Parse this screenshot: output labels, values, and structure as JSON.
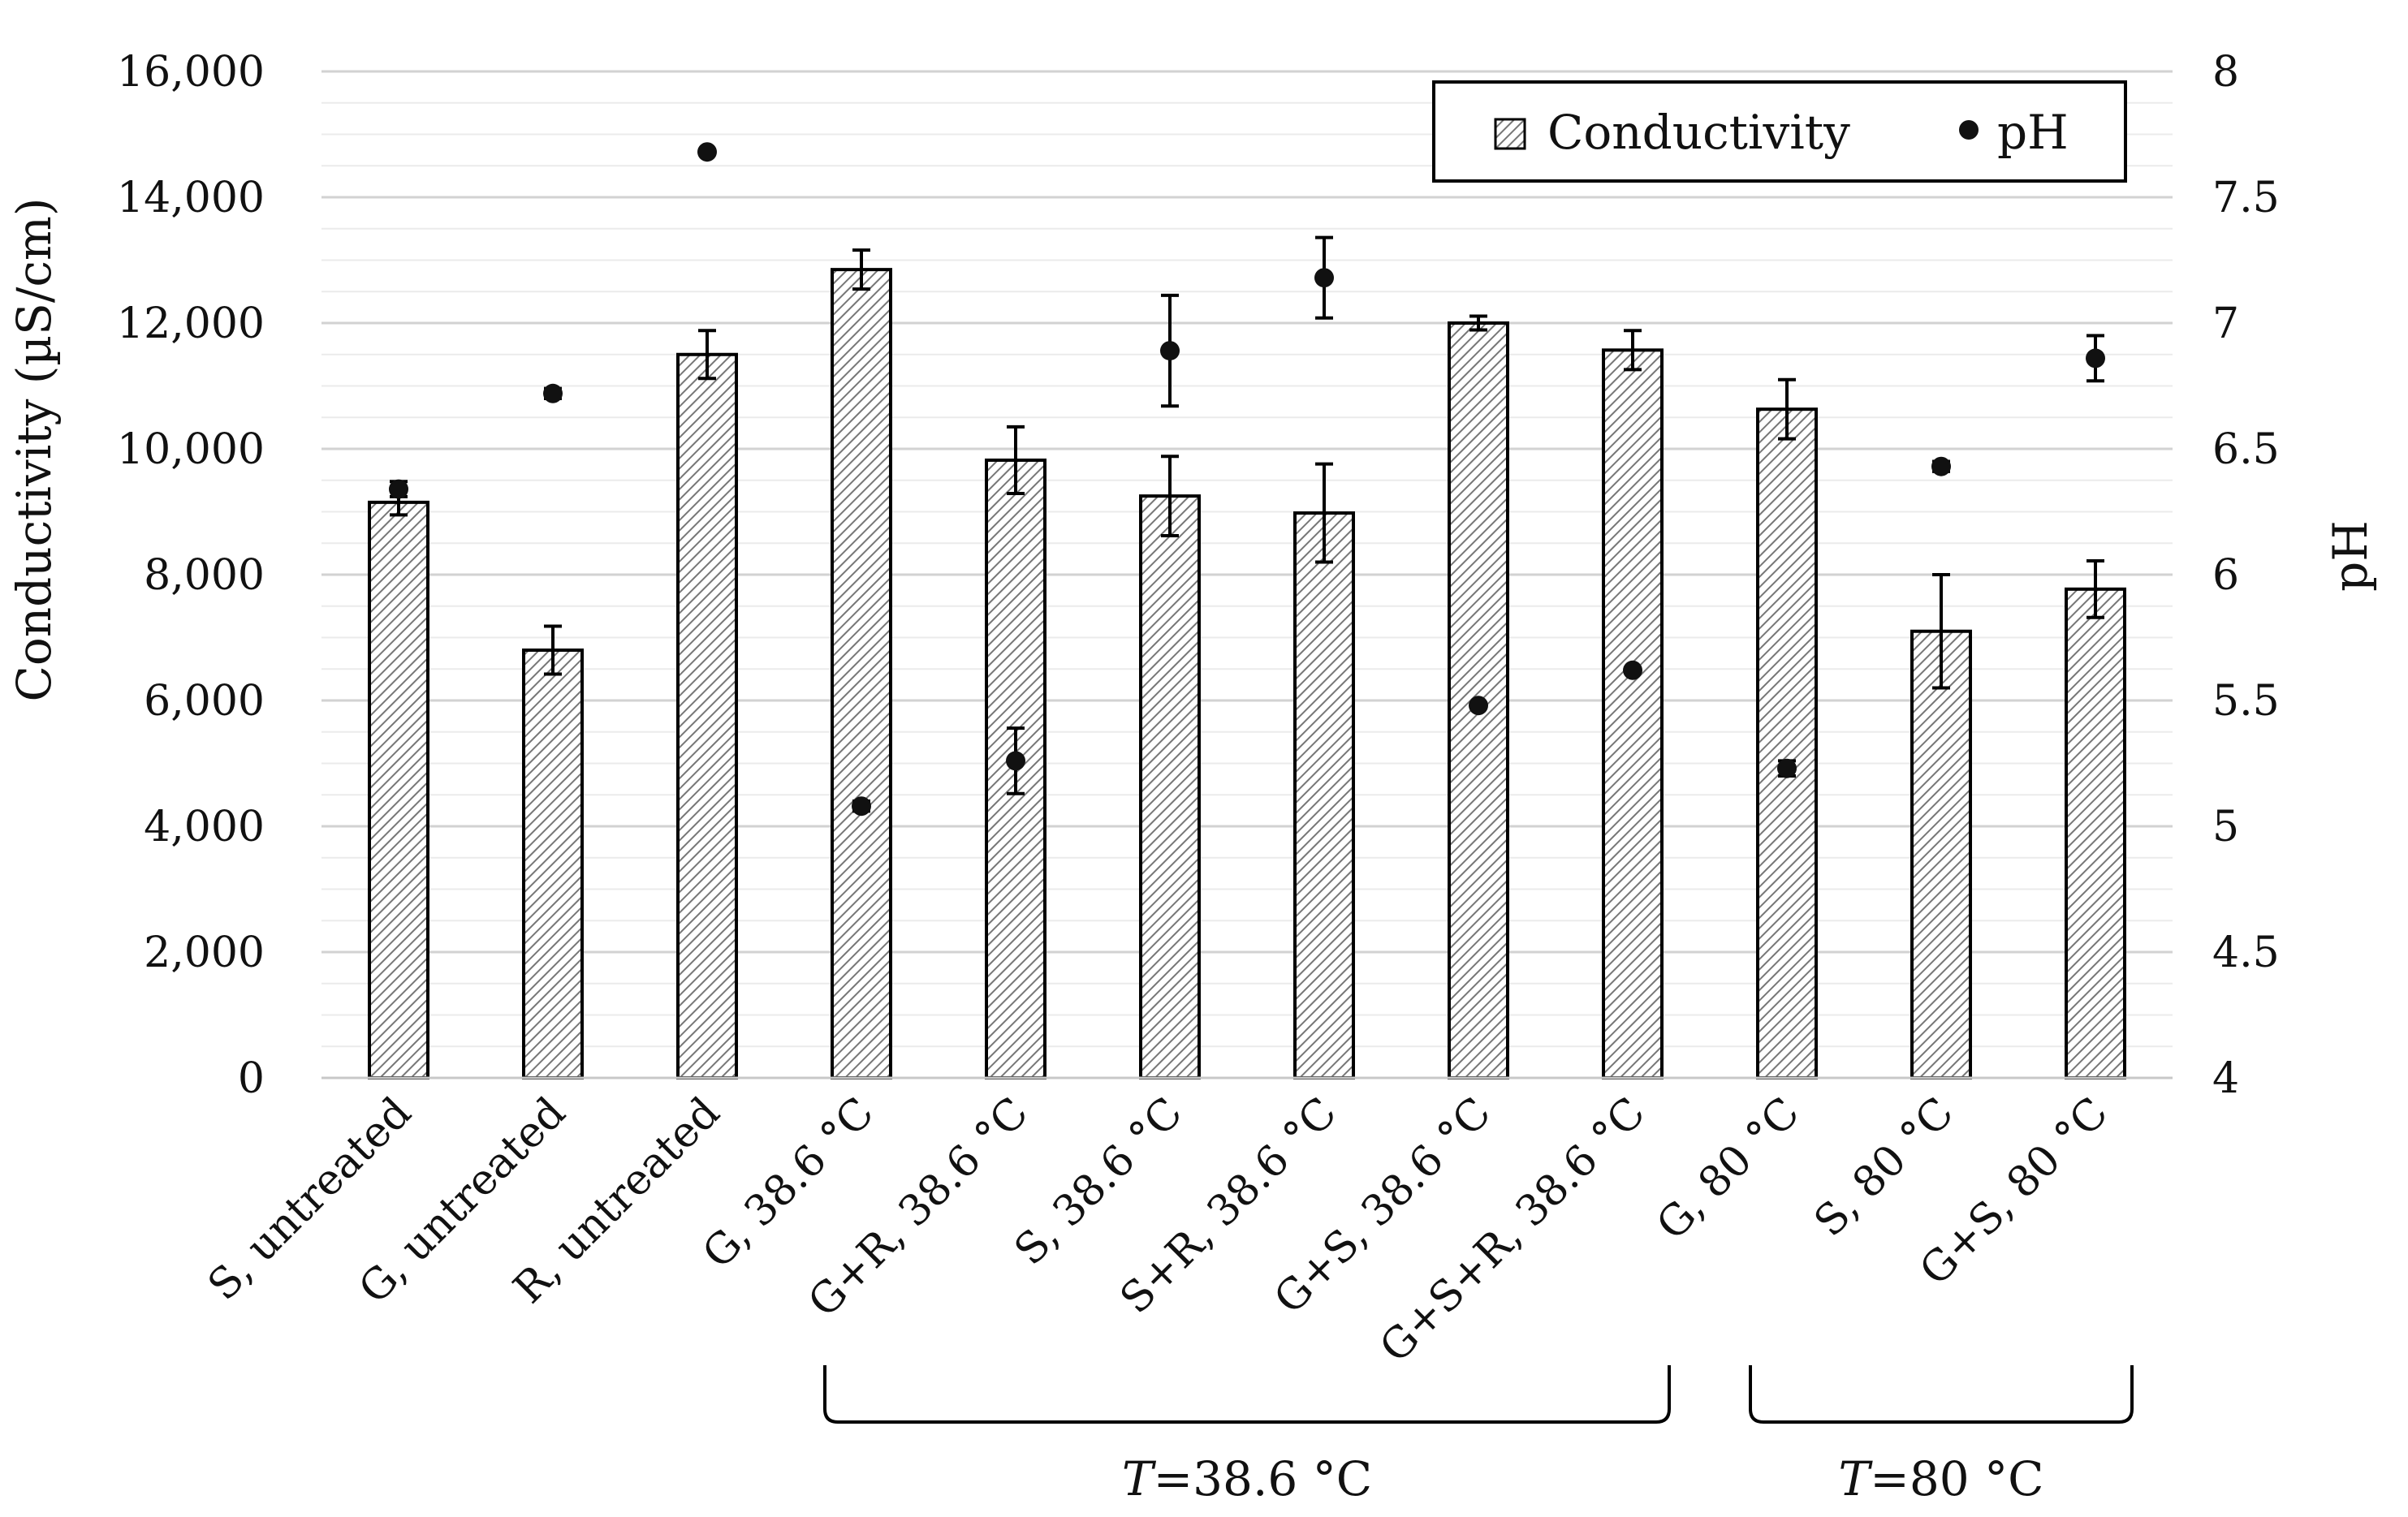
{
  "chart_data": {
    "type": "bar",
    "title": "",
    "categories": [
      "S, untreated",
      "G, untreated",
      "R, untreated",
      "G, 38.6 °C",
      "G+R, 38.6 °C",
      "S, 38.6 °C",
      "S+R, 38.6 °C",
      "G+S, 38.6 °C",
      "G+S+R, 38.6 °C",
      "G, 80 °C",
      "S, 80 °C",
      "G+S, 80 °C"
    ],
    "series": [
      {
        "name": "Conductivity",
        "axis": "left",
        "kind": "bar",
        "pattern": "diagonal-hatch",
        "values": [
          9150,
          6800,
          11500,
          12850,
          9820,
          9250,
          8980,
          12000,
          11570,
          10630,
          7100,
          7770
        ],
        "errors": [
          200,
          380,
          380,
          310,
          530,
          630,
          780,
          110,
          310,
          470,
          900,
          450
        ]
      },
      {
        "name": "pH",
        "axis": "right",
        "kind": "scatter",
        "values": [
          6.34,
          6.72,
          7.68,
          5.08,
          5.26,
          6.89,
          7.18,
          5.48,
          5.62,
          5.23,
          6.43,
          6.86
        ],
        "errors": [
          0.03,
          0.02,
          0.01,
          0.02,
          0.13,
          0.22,
          0.16,
          0.01,
          0.01,
          0.03,
          0.02,
          0.09
        ]
      }
    ],
    "ylabel": "Conductivity (µS/cm)",
    "ylim": [
      0,
      16000
    ],
    "yticks": [
      "0",
      "2,000",
      "4,000",
      "6,000",
      "8,000",
      "10,000",
      "12,000",
      "14,000",
      "16,000"
    ],
    "y2label": "pH",
    "y2lim": [
      4,
      8
    ],
    "y2ticks": [
      "4",
      "4.5",
      "5",
      "5.5",
      "6",
      "6.5",
      "7",
      "7.5",
      "8"
    ],
    "grid": true,
    "legend": {
      "position": "top-right",
      "entries": [
        "Conductivity",
        "pH"
      ]
    },
    "groups": [
      {
        "italic": "T",
        "rest": "=38.6 °C",
        "from": 3,
        "to": 8
      },
      {
        "italic": "T",
        "rest": "=80 °C",
        "from": 9,
        "to": 11
      }
    ]
  }
}
